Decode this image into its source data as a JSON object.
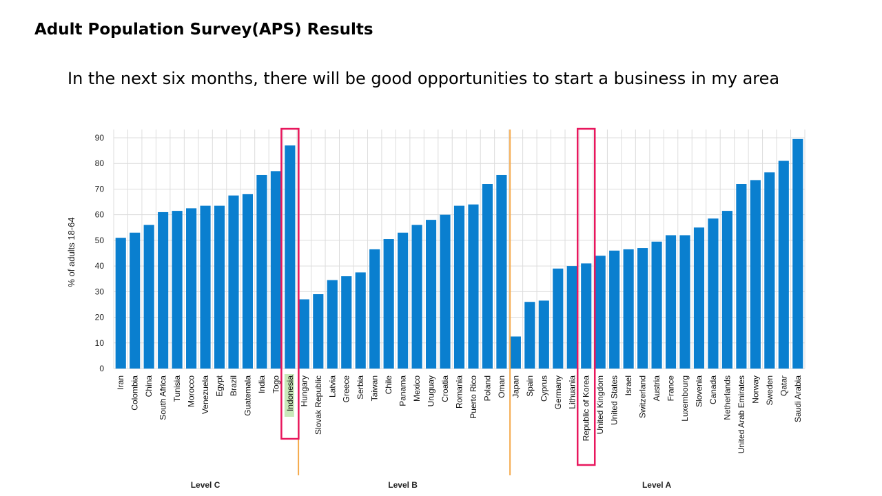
{
  "slide": {
    "title": "Adult Population Survey(APS) Results",
    "subtitle": "In the next six months, there will be good opportunities to start a business in my area"
  },
  "chart_data": {
    "type": "bar",
    "ylabel": "% of adults 18-64",
    "ylim": [
      0,
      90
    ],
    "yticks": [
      0,
      10,
      20,
      30,
      40,
      50,
      60,
      70,
      80,
      90
    ],
    "grid": true,
    "bar_color": "#0a7fcf",
    "highlight_color": "#e8175d",
    "divider_color": "#f5a94a",
    "highlighted": [
      "Indonesia",
      "Republic of Korea"
    ],
    "groups": [
      {
        "name": "Level C",
        "categories": [
          "Iran",
          "Colombia",
          "China",
          "South Africa",
          "Tunisia",
          "Morocco",
          "Venezuela",
          "Egypt",
          "Brazil",
          "Guatemala",
          "India",
          "Togo",
          "Indonesia"
        ]
      },
      {
        "name": "Level B",
        "categories": [
          "Hungary",
          "Slovak Republic",
          "Latvia",
          "Greece",
          "Serbia",
          "Taiwan",
          "Chile",
          "Panama",
          "Mexico",
          "Uruguay",
          "Croatia",
          "Romania",
          "Puerto Rico",
          "Poland",
          "Oman"
        ]
      },
      {
        "name": "Level A",
        "categories": [
          "Japan",
          "Spain",
          "Cyprus",
          "Germany",
          "Lithuania",
          "Republic of Korea",
          "United Kingdom",
          "United States",
          "Israel",
          "Switzerland",
          "Austria",
          "France",
          "Luxembourg",
          "Slovenia",
          "Canada",
          "Netherlands",
          "United Arab Emirates",
          "Norway",
          "Sweden",
          "Qatar",
          "Saudi Arabia"
        ]
      }
    ],
    "categories": [
      "Iran",
      "Colombia",
      "China",
      "South Africa",
      "Tunisia",
      "Morocco",
      "Venezuela",
      "Egypt",
      "Brazil",
      "Guatemala",
      "India",
      "Togo",
      "Indonesia",
      "Hungary",
      "Slovak Republic",
      "Latvia",
      "Greece",
      "Serbia",
      "Taiwan",
      "Chile",
      "Panama",
      "Mexico",
      "Uruguay",
      "Croatia",
      "Romania",
      "Puerto Rico",
      "Poland",
      "Oman",
      "Japan",
      "Spain",
      "Cyprus",
      "Germany",
      "Lithuania",
      "Republic of Korea",
      "United Kingdom",
      "United States",
      "Israel",
      "Switzerland",
      "Austria",
      "France",
      "Luxembourg",
      "Slovenia",
      "Canada",
      "Netherlands",
      "United Arab Emirates",
      "Norway",
      "Sweden",
      "Qatar",
      "Saudi Arabia"
    ],
    "values": [
      51,
      53,
      56,
      61,
      61.5,
      62.5,
      63.5,
      63.5,
      67.5,
      68,
      75.5,
      77,
      87,
      27,
      29,
      34.5,
      36,
      37.5,
      46.5,
      50.5,
      53,
      56,
      58,
      60,
      63.5,
      64,
      72,
      75.5,
      12.5,
      26,
      26.5,
      39,
      40,
      41,
      44,
      46,
      46.5,
      47,
      49.5,
      52,
      52,
      55,
      58.5,
      61.5,
      72,
      73.5,
      76.5,
      81,
      89.5
    ]
  }
}
